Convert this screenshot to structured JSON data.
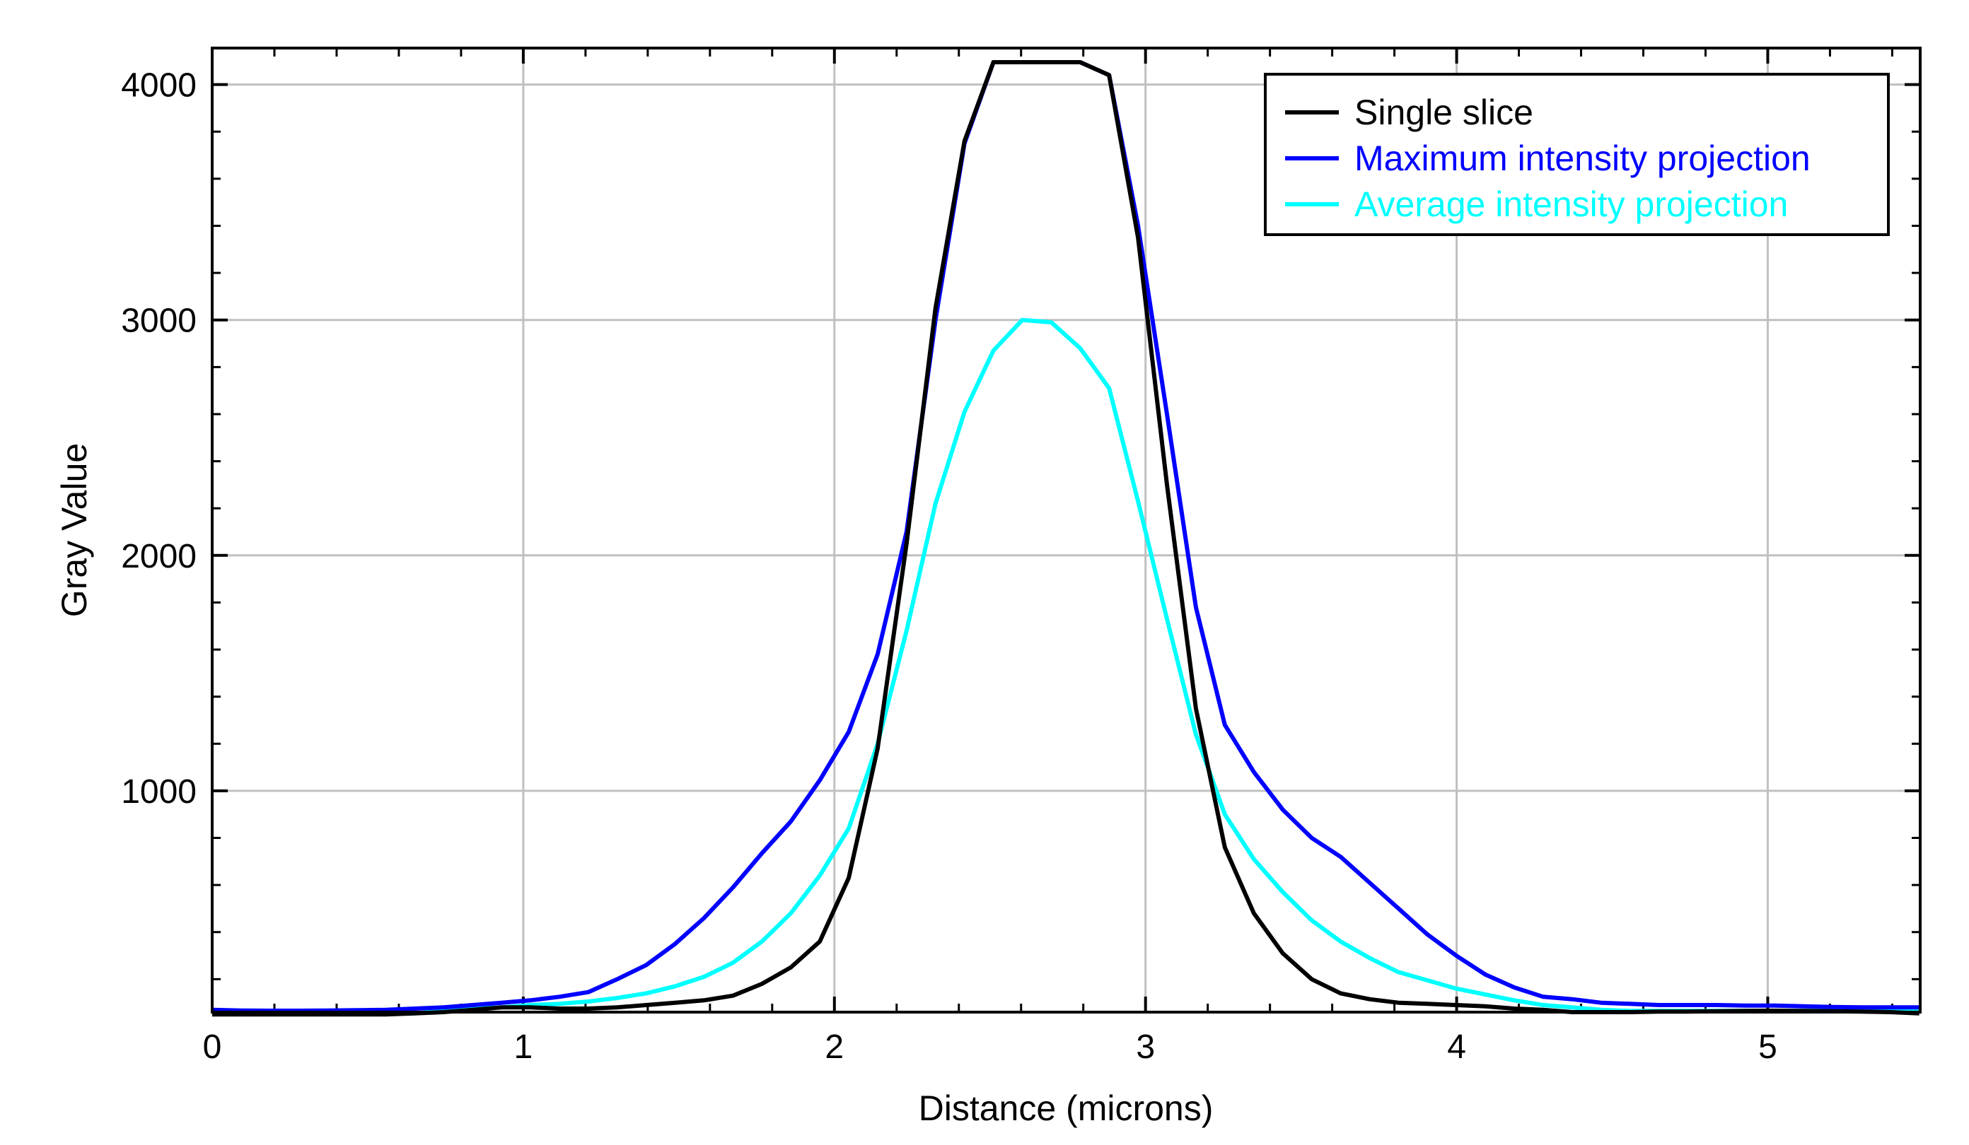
{
  "chart_data": {
    "type": "line",
    "title": "",
    "xlabel": "Distance (microns)",
    "ylabel": "Gray Value",
    "xlim": [
      0,
      5.49
    ],
    "ylim": [
      60,
      4155
    ],
    "xticks": [
      0,
      1,
      2,
      3,
      4,
      5
    ],
    "yticks": [
      1000,
      2000,
      3000,
      4000
    ],
    "x_minor_step": 0.2,
    "y_minor_step": 200,
    "grid": true,
    "legend_position": "top-right",
    "x_step": 0.093,
    "series": [
      {
        "name": "Single slice",
        "color": "#000000",
        "values": [
          50,
          50,
          50,
          50,
          50,
          50,
          50,
          55,
          60,
          70,
          80,
          80,
          75,
          75,
          80,
          90,
          100,
          110,
          130,
          180,
          250,
          360,
          630,
          1180,
          2050,
          3050,
          3760,
          4095,
          4095,
          4095,
          4095,
          4040,
          3350,
          2300,
          1350,
          760,
          480,
          310,
          200,
          140,
          115,
          100,
          95,
          90,
          85,
          75,
          70,
          60,
          60,
          60,
          62,
          62,
          64,
          65,
          66,
          65,
          64,
          62,
          60,
          55
        ]
      },
      {
        "name": "Maximum intensity projection",
        "color": "#0000ff",
        "values": [
          70,
          67,
          66,
          66,
          67,
          68,
          70,
          75,
          80,
          90,
          100,
          110,
          125,
          145,
          200,
          260,
          350,
          460,
          590,
          735,
          870,
          1045,
          1250,
          1580,
          2100,
          3000,
          3750,
          4095,
          4095,
          4095,
          4095,
          4040,
          3400,
          2600,
          1780,
          1280,
          1080,
          920,
          800,
          720,
          610,
          500,
          390,
          300,
          220,
          165,
          125,
          115,
          100,
          95,
          90,
          90,
          90,
          88,
          88,
          85,
          82,
          80,
          80,
          80
        ]
      },
      {
        "name": "Average intensity projection",
        "color": "#00ffff",
        "values": [
          55,
          55,
          55,
          55,
          55,
          55,
          55,
          55,
          65,
          75,
          80,
          90,
          95,
          105,
          120,
          140,
          170,
          210,
          270,
          360,
          480,
          640,
          840,
          1200,
          1680,
          2220,
          2610,
          2870,
          3000,
          2990,
          2880,
          2710,
          2230,
          1730,
          1240,
          900,
          710,
          570,
          450,
          360,
          290,
          230,
          195,
          160,
          135,
          110,
          90,
          80,
          70,
          65,
          65,
          65,
          65,
          65,
          65,
          65,
          65,
          65,
          65,
          65
        ]
      }
    ]
  }
}
